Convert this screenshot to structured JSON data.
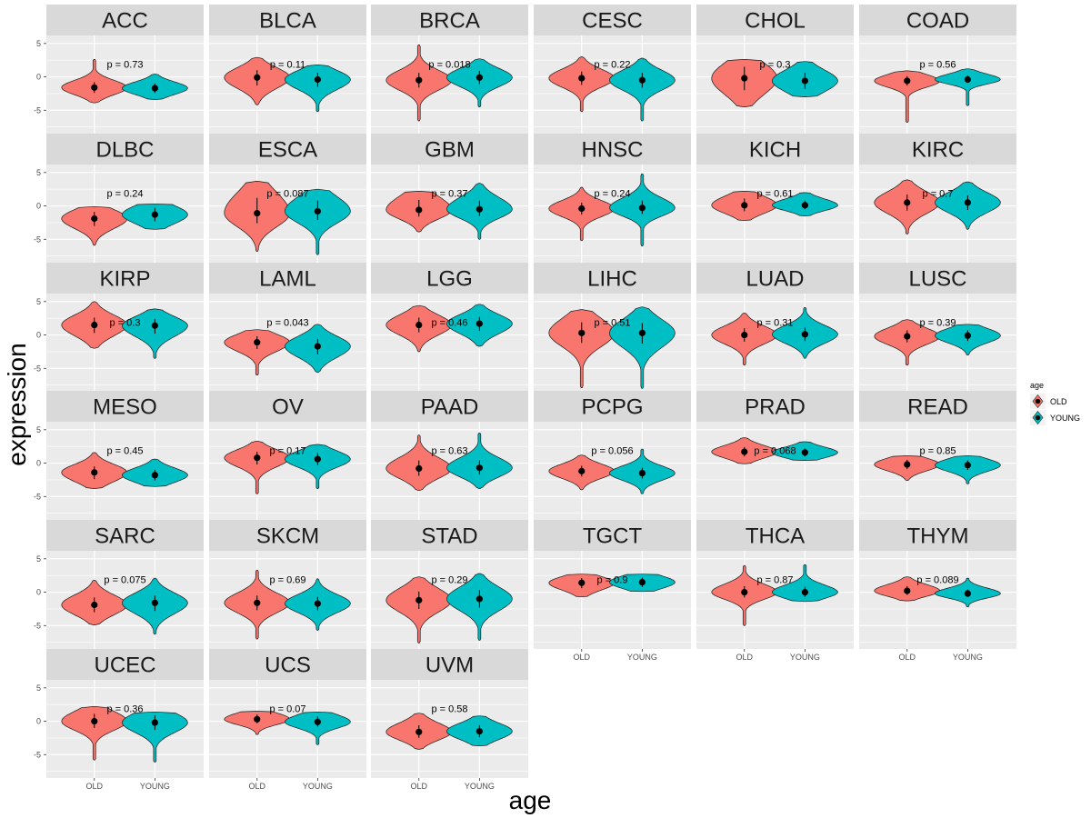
{
  "chart_data": {
    "type": "violin",
    "xlabel": "age",
    "ylabel": "expression",
    "groups": [
      "OLD",
      "YOUNG"
    ],
    "ylim": [
      -8.5,
      6.2
    ],
    "yticks": [
      5,
      0,
      -5
    ],
    "ytick_labels": [
      "5",
      "0",
      "-5"
    ],
    "legend": {
      "title": "age",
      "placement": "right",
      "entries": [
        {
          "label": "OLD",
          "color": "#F8766D"
        },
        {
          "label": "YOUNG",
          "color": "#00BFC4"
        }
      ]
    },
    "colors": {
      "panel_bg": "#EBEBEB",
      "grid_major": "#FFFFFF",
      "strip_bg": "#D9D9D9",
      "old": "#F8766D",
      "young": "#00BFC4",
      "outline": "#1A1A1A"
    },
    "panels": [
      {
        "name": "ACC",
        "p": "p = 0.73",
        "old": {
          "median": -1.6,
          "lo": -3.9,
          "hi": 2.6,
          "q1": -2.4,
          "q3": -0.8
        },
        "young": {
          "median": -1.7,
          "lo": -3.4,
          "hi": 0.4,
          "q1": -2.4,
          "q3": -1.0
        }
      },
      {
        "name": "BLCA",
        "p": "p = 0.11",
        "old": {
          "median": -0.1,
          "lo": -4.2,
          "hi": 2.9,
          "q1": -1.3,
          "q3": 1.0
        },
        "young": {
          "median": -0.4,
          "lo": -5.2,
          "hi": 1.8,
          "q1": -1.5,
          "q3": 0.6
        }
      },
      {
        "name": "BRCA",
        "p": "p = 0.018",
        "old": {
          "median": -0.5,
          "lo": -6.6,
          "hi": 4.8,
          "q1": -1.6,
          "q3": 0.6
        },
        "young": {
          "median": -0.1,
          "lo": -4.5,
          "hi": 2.7,
          "q1": -1.1,
          "q3": 0.9
        }
      },
      {
        "name": "CESC",
        "p": "p = 0.22",
        "old": {
          "median": -0.2,
          "lo": -5.2,
          "hi": 3.0,
          "q1": -1.2,
          "q3": 0.8
        },
        "young": {
          "median": -0.5,
          "lo": -6.6,
          "hi": 2.8,
          "q1": -1.6,
          "q3": 0.6
        }
      },
      {
        "name": "CHOL",
        "p": "p = 0.3",
        "old": {
          "median": -0.2,
          "lo": -4.5,
          "hi": 2.6,
          "q1": -2.0,
          "q3": 1.5
        },
        "young": {
          "median": -0.6,
          "lo": -3.0,
          "hi": 2.3,
          "q1": -1.8,
          "q3": 0.6
        }
      },
      {
        "name": "COAD",
        "p": "p = 0.56",
        "old": {
          "median": -0.6,
          "lo": -6.8,
          "hi": 0.9,
          "q1": -1.3,
          "q3": 0.1
        },
        "young": {
          "median": -0.4,
          "lo": -4.3,
          "hi": 1.2,
          "q1": -0.9,
          "q3": 0.2
        }
      },
      {
        "name": "DLBC",
        "p": "p = 0.24",
        "old": {
          "median": -1.9,
          "lo": -5.9,
          "hi": -0.1,
          "q1": -3.0,
          "q3": -0.9
        },
        "young": {
          "median": -1.3,
          "lo": -3.5,
          "hi": 0.3,
          "q1": -2.3,
          "q3": -0.3
        }
      },
      {
        "name": "ESCA",
        "p": "p = 0.087",
        "old": {
          "median": -1.1,
          "lo": -6.8,
          "hi": 3.7,
          "q1": -2.6,
          "q3": 1.2
        },
        "young": {
          "median": -0.8,
          "lo": -7.3,
          "hi": 2.5,
          "q1": -2.1,
          "q3": 0.8
        }
      },
      {
        "name": "GBM",
        "p": "p = 0.37",
        "old": {
          "median": -0.6,
          "lo": -3.9,
          "hi": 2.2,
          "q1": -1.6,
          "q3": 0.9
        },
        "young": {
          "median": -0.5,
          "lo": -5.0,
          "hi": 3.4,
          "q1": -1.5,
          "q3": 0.8
        }
      },
      {
        "name": "HNSC",
        "p": "p = 0.24",
        "old": {
          "median": -0.4,
          "lo": -5.2,
          "hi": 2.8,
          "q1": -1.3,
          "q3": 0.5
        },
        "young": {
          "median": -0.3,
          "lo": -6.0,
          "hi": 4.8,
          "q1": -1.2,
          "q3": 0.8
        }
      },
      {
        "name": "KICH",
        "p": "p = 0.61",
        "old": {
          "median": 0.1,
          "lo": -2.2,
          "hi": 2.2,
          "q1": -0.8,
          "q3": 1.1
        },
        "young": {
          "median": 0.1,
          "lo": -1.5,
          "hi": 2.0,
          "q1": -0.5,
          "q3": 0.8
        }
      },
      {
        "name": "KIRC",
        "p": "p = 0.7",
        "old": {
          "median": 0.5,
          "lo": -4.2,
          "hi": 3.9,
          "q1": -0.7,
          "q3": 1.7
        },
        "young": {
          "median": 0.5,
          "lo": -3.5,
          "hi": 3.6,
          "q1": -0.6,
          "q3": 1.6
        }
      },
      {
        "name": "KIRP",
        "p": "p = 0.3",
        "old": {
          "median": 1.5,
          "lo": -2.0,
          "hi": 5.0,
          "q1": 0.3,
          "q3": 2.6
        },
        "young": {
          "median": 1.4,
          "lo": -3.5,
          "hi": 3.9,
          "q1": 0.2,
          "q3": 2.4
        }
      },
      {
        "name": "LAML",
        "p": "p = 0.043",
        "old": {
          "median": -1.1,
          "lo": -6.0,
          "hi": 0.8,
          "q1": -2.1,
          "q3": -0.2
        },
        "young": {
          "median": -1.7,
          "lo": -5.6,
          "hi": 1.6,
          "q1": -2.9,
          "q3": -0.6
        }
      },
      {
        "name": "LGG",
        "p": "p = 0.46",
        "old": {
          "median": 1.5,
          "lo": -2.5,
          "hi": 4.4,
          "q1": 0.4,
          "q3": 2.6
        },
        "young": {
          "median": 1.7,
          "lo": -1.7,
          "hi": 4.6,
          "q1": 0.6,
          "q3": 2.7
        }
      },
      {
        "name": "LIHC",
        "p": "p = 0.51",
        "old": {
          "median": 0.3,
          "lo": -7.9,
          "hi": 3.8,
          "q1": -1.2,
          "q3": 1.9
        },
        "young": {
          "median": 0.3,
          "lo": -8.0,
          "hi": 4.2,
          "q1": -1.3,
          "q3": 1.8
        }
      },
      {
        "name": "LUAD",
        "p": "p = 0.31",
        "old": {
          "median": 0.0,
          "lo": -4.5,
          "hi": 3.3,
          "q1": -1.0,
          "q3": 1.0
        },
        "young": {
          "median": 0.1,
          "lo": -3.5,
          "hi": 4.1,
          "q1": -0.9,
          "q3": 1.1
        }
      },
      {
        "name": "LUSC",
        "p": "p = 0.39",
        "old": {
          "median": -0.2,
          "lo": -4.5,
          "hi": 2.3,
          "q1": -1.1,
          "q3": 0.7
        },
        "young": {
          "median": -0.1,
          "lo": -3.0,
          "hi": 1.6,
          "q1": -0.9,
          "q3": 0.7
        }
      },
      {
        "name": "MESO",
        "p": "p = 0.45",
        "old": {
          "median": -1.4,
          "lo": -3.8,
          "hi": 1.6,
          "q1": -2.4,
          "q3": -0.5
        },
        "young": {
          "median": -1.8,
          "lo": -3.5,
          "hi": 0.6,
          "q1": -2.6,
          "q3": -1.0
        }
      },
      {
        "name": "OV",
        "p": "p = 0.17",
        "old": {
          "median": 0.8,
          "lo": -4.6,
          "hi": 3.3,
          "q1": -0.2,
          "q3": 1.7
        },
        "young": {
          "median": 0.6,
          "lo": -3.8,
          "hi": 2.8,
          "q1": -0.3,
          "q3": 1.5
        }
      },
      {
        "name": "PAAD",
        "p": "p = 0.63",
        "old": {
          "median": -0.8,
          "lo": -4.1,
          "hi": 4.2,
          "q1": -1.9,
          "q3": 0.4
        },
        "young": {
          "median": -0.7,
          "lo": -3.8,
          "hi": 4.5,
          "q1": -1.7,
          "q3": 0.4
        }
      },
      {
        "name": "PCPG",
        "p": "p = 0.056",
        "old": {
          "median": -1.2,
          "lo": -4.0,
          "hi": 1.2,
          "q1": -2.0,
          "q3": -0.4
        },
        "young": {
          "median": -1.5,
          "lo": -4.6,
          "hi": 2.1,
          "q1": -2.3,
          "q3": -0.7
        }
      },
      {
        "name": "PRAD",
        "p": "p = 0.068",
        "old": {
          "median": 1.7,
          "lo": -0.1,
          "hi": 3.8,
          "q1": 1.0,
          "q3": 2.4
        },
        "young": {
          "median": 1.6,
          "lo": 0.4,
          "hi": 3.2,
          "q1": 1.0,
          "q3": 2.2
        }
      },
      {
        "name": "READ",
        "p": "p = 0.85",
        "old": {
          "median": -0.2,
          "lo": -2.6,
          "hi": 1.1,
          "q1": -0.9,
          "q3": 0.5
        },
        "young": {
          "median": -0.3,
          "lo": -3.1,
          "hi": 1.1,
          "q1": -1.0,
          "q3": 0.4
        }
      },
      {
        "name": "SARC",
        "p": "p = 0.075",
        "old": {
          "median": -1.9,
          "lo": -4.9,
          "hi": 1.8,
          "q1": -3.0,
          "q3": -0.8
        },
        "young": {
          "median": -1.6,
          "lo": -6.3,
          "hi": 2.1,
          "q1": -2.8,
          "q3": -0.5
        }
      },
      {
        "name": "SKCM",
        "p": "p = 0.69",
        "old": {
          "median": -1.6,
          "lo": -7.0,
          "hi": 3.3,
          "q1": -2.7,
          "q3": -0.5
        },
        "young": {
          "median": -1.7,
          "lo": -5.7,
          "hi": 2.0,
          "q1": -2.7,
          "q3": -0.7
        }
      },
      {
        "name": "STAD",
        "p": "p = 0.29",
        "old": {
          "median": -1.2,
          "lo": -7.6,
          "hi": 2.3,
          "q1": -2.5,
          "q3": 0.1
        },
        "young": {
          "median": -1.0,
          "lo": -7.2,
          "hi": 2.8,
          "q1": -2.3,
          "q3": 0.3
        }
      },
      {
        "name": "TGCT",
        "p": "p = 0.9",
        "old": {
          "median": 1.4,
          "lo": -0.7,
          "hi": 2.7,
          "q1": 0.6,
          "q3": 2.1
        },
        "young": {
          "median": 1.5,
          "lo": 0.1,
          "hi": 2.7,
          "q1": 0.8,
          "q3": 2.2
        }
      },
      {
        "name": "THCA",
        "p": "p = 0.87",
        "old": {
          "median": 0.0,
          "lo": -5.0,
          "hi": 4.0,
          "q1": -0.8,
          "q3": 0.9
        },
        "young": {
          "median": 0.0,
          "lo": -1.4,
          "hi": 4.1,
          "q1": -0.7,
          "q3": 0.8
        }
      },
      {
        "name": "THYM",
        "p": "p = 0.089",
        "old": {
          "median": 0.2,
          "lo": -1.3,
          "hi": 2.3,
          "q1": -0.4,
          "q3": 0.9
        },
        "young": {
          "median": -0.2,
          "lo": -2.2,
          "hi": 2.1,
          "q1": -0.7,
          "q3": 0.4
        }
      },
      {
        "name": "UCEC",
        "p": "p = 0.36",
        "old": {
          "median": 0.0,
          "lo": -5.8,
          "hi": 2.2,
          "q1": -1.0,
          "q3": 1.1
        },
        "young": {
          "median": -0.2,
          "lo": -6.1,
          "hi": 1.4,
          "q1": -1.3,
          "q3": 0.9
        }
      },
      {
        "name": "UCS",
        "p": "p = 0.07",
        "old": {
          "median": 0.3,
          "lo": -2.0,
          "hi": 1.5,
          "q1": -0.3,
          "q3": 1.0
        },
        "young": {
          "median": -0.1,
          "lo": -3.5,
          "hi": 1.4,
          "q1": -0.8,
          "q3": 0.7
        }
      },
      {
        "name": "UVM",
        "p": "p = 0.58",
        "old": {
          "median": -1.6,
          "lo": -4.2,
          "hi": 1.2,
          "q1": -2.5,
          "q3": -0.6
        },
        "young": {
          "median": -1.5,
          "lo": -3.7,
          "hi": 0.8,
          "q1": -2.4,
          "q3": -0.6
        }
      }
    ]
  }
}
